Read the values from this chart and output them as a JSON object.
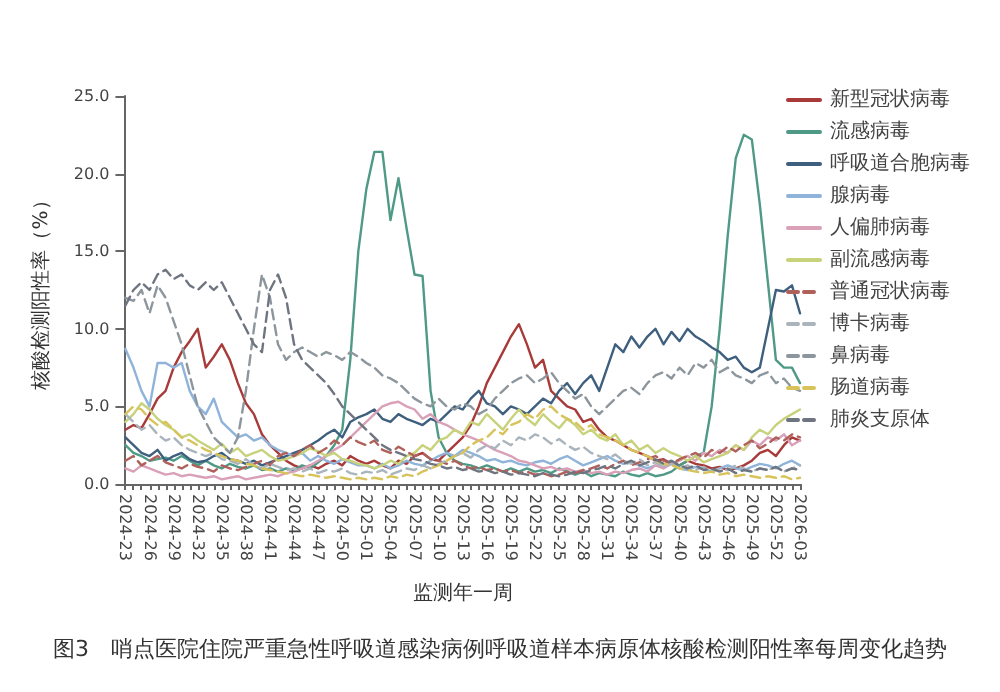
{
  "chart_data": {
    "type": "line",
    "xlabel": "监测年一周",
    "ylabel": "核酸检测阳性率（%）",
    "annotations": [
      "图3　哨点医院住院严重急性呼吸道感染病例呼吸道样本病原体核酸检测阳性率每周变化趋势"
    ],
    "categories": [
      "2024-23",
      null,
      null,
      "2024-26",
      null,
      null,
      "2024-29",
      null,
      null,
      "2024-32",
      null,
      null,
      "2024-35",
      null,
      null,
      "2024-38",
      null,
      null,
      "2024-41",
      null,
      null,
      "2024-44",
      null,
      null,
      "2024-47",
      null,
      null,
      "2024-50",
      null,
      null,
      "2025-01",
      null,
      null,
      "2025-04",
      null,
      null,
      "2025-07",
      null,
      null,
      "2025-10",
      null,
      null,
      "2025-13",
      null,
      null,
      "2025-16",
      null,
      null,
      "2025-19",
      null,
      null,
      "2025-22",
      null,
      null,
      "2025-25",
      null,
      null,
      "2025-28",
      null,
      null,
      "2025-31",
      null,
      null,
      "2025-34",
      null,
      null,
      "2025-37",
      null,
      null,
      "2025-40",
      null,
      null,
      "2025-43",
      null,
      null,
      "2025-46",
      null,
      null,
      "2025-49",
      null,
      null,
      "2025-52",
      null,
      null,
      "2026-03"
    ],
    "series": [
      {
        "name": "新型冠状病毒",
        "color": "#a83a3a",
        "line_style": "solid",
        "values": [
          3.5,
          3.8,
          3.6,
          4.5,
          5.5,
          6,
          7.5,
          8.5,
          9.2,
          10,
          7.5,
          8.2,
          9,
          8,
          6.5,
          5.2,
          4.5,
          3.2,
          2.5,
          2,
          1.5,
          1.2,
          1,
          1.2,
          1,
          1.3,
          1.5,
          1.2,
          1.8,
          1.5,
          1.3,
          1.5,
          1.2,
          1,
          1.5,
          1.3,
          1.8,
          2,
          1.6,
          1.5,
          2,
          2.5,
          3,
          3.8,
          5,
          6.5,
          7.5,
          8.5,
          9.5,
          10.3,
          9,
          7.5,
          8,
          6,
          5.5,
          5,
          4.8,
          4,
          4.2,
          3.5,
          3,
          2.8,
          2.5,
          2.2,
          2,
          1.8,
          1.5,
          1.6,
          1.3,
          1.2,
          1.5,
          1.3,
          1.2,
          1,
          1.1,
          0.9,
          1,
          1.2,
          1.5,
          2,
          2.2,
          1.8,
          2.5,
          3,
          2.8
        ]
      },
      {
        "name": "流感病毒",
        "color": "#4e9a86",
        "line_style": "solid",
        "values": [
          2.5,
          2,
          1.8,
          1.5,
          1.6,
          1.7,
          1.5,
          1.8,
          1.5,
          1.2,
          1.5,
          1.2,
          1,
          1.3,
          1.1,
          1,
          1.2,
          0.9,
          1,
          0.8,
          1,
          0.9,
          1.2,
          1,
          1.4,
          1.8,
          2.5,
          3.5,
          8,
          15,
          19,
          21.4,
          21.4,
          17,
          19.7,
          16.5,
          13.5,
          13.4,
          6,
          3,
          2,
          1.5,
          1.3,
          1.2,
          1,
          1.2,
          1,
          0.8,
          1,
          0.8,
          1,
          0.8,
          0.9,
          0.7,
          1,
          0.8,
          0.6,
          0.8,
          0.5,
          0.7,
          0.6,
          0.5,
          0.8,
          0.6,
          0.5,
          0.7,
          0.5,
          0.6,
          0.8,
          1.2,
          1.5,
          1.8,
          2,
          5,
          10,
          16,
          21,
          22.5,
          22.2,
          18,
          13,
          8,
          7.5,
          7.5,
          6.5
        ]
      },
      {
        "name": "呼吸道合胞病毒",
        "color": "#3f5f7f",
        "line_style": "solid",
        "values": [
          3,
          2.5,
          2,
          1.8,
          2.2,
          1.5,
          1.8,
          2,
          1.6,
          1.4,
          1.5,
          1.8,
          2,
          1.6,
          1.5,
          1.3,
          1.5,
          1.2,
          1.4,
          1.6,
          1.8,
          2,
          2.2,
          2.5,
          2.8,
          3.2,
          3.5,
          3,
          4,
          4.3,
          4.5,
          4.8,
          4.2,
          4,
          4.5,
          4.2,
          4,
          3.8,
          4.2,
          4,
          4.5,
          5,
          4.8,
          5.5,
          6,
          5.2,
          5,
          4.5,
          5,
          4.8,
          4.5,
          5,
          5.5,
          5.2,
          6,
          6.5,
          5.8,
          6.5,
          7,
          6,
          7.5,
          9,
          8.5,
          9.5,
          8.8,
          9.5,
          10,
          9,
          9.8,
          9.2,
          10,
          9.5,
          9.2,
          8.8,
          8.5,
          8,
          8.2,
          7.5,
          7.2,
          7.5,
          10,
          12.5,
          12.4,
          12.8,
          11
        ]
      },
      {
        "name": "腺病毒",
        "color": "#8fb3d9",
        "line_style": "solid",
        "values": [
          8.7,
          7.5,
          6,
          5,
          7.8,
          7.8,
          7.5,
          7.8,
          6,
          5,
          4.5,
          5.5,
          4,
          3.5,
          3,
          3.2,
          2.8,
          3,
          2.5,
          2.2,
          2,
          1.8,
          2,
          1.5,
          1.8,
          1.5,
          1.3,
          1.6,
          1.4,
          1.2,
          1.2,
          1,
          1.3,
          1,
          1.2,
          1.5,
          1.3,
          1.2,
          1.5,
          1.8,
          2,
          1.8,
          2.2,
          2,
          1.8,
          1.5,
          1.6,
          1.4,
          1.5,
          1.3,
          1.2,
          1.4,
          1.5,
          1.3,
          1.6,
          1.8,
          1.5,
          1.2,
          1.4,
          1.6,
          1.8,
          1.5,
          1.3,
          1.4,
          1.2,
          1,
          1.2,
          1.1,
          1.3,
          1,
          0.9,
          1.1,
          1,
          0.8,
          1,
          1.2,
          1,
          0.9,
          1.1,
          1.3,
          1.2,
          1,
          1.3,
          1.5,
          1.2
        ]
      },
      {
        "name": "人偏肺病毒",
        "color": "#d9a0b8",
        "line_style": "solid",
        "values": [
          1,
          0.8,
          1.2,
          1,
          0.8,
          0.6,
          0.7,
          0.5,
          0.6,
          0.5,
          0.4,
          0.5,
          0.3,
          0.4,
          0.5,
          0.3,
          0.4,
          0.5,
          0.6,
          0.5,
          0.7,
          0.8,
          1,
          1.2,
          1.5,
          1.8,
          2.2,
          2.5,
          3,
          3.5,
          4,
          4.5,
          5,
          5.2,
          5.3,
          5,
          4.8,
          4.2,
          4.5,
          4,
          3.8,
          3.5,
          3.2,
          3,
          2.8,
          2.5,
          2.2,
          2,
          1.8,
          1.5,
          1.4,
          1.2,
          1,
          1.1,
          0.9,
          1,
          0.8,
          0.9,
          0.7,
          0.8,
          0.6,
          0.8,
          0.7,
          0.9,
          1,
          0.8,
          1.2,
          1,
          1.3,
          1.5,
          1.8,
          1.5,
          2,
          1.8,
          2.2,
          2,
          2.5,
          2.2,
          2.8,
          2.5,
          3,
          2.8,
          3.2,
          2.5,
          2.8
        ]
      },
      {
        "name": "副流感病毒",
        "color": "#c8d27a",
        "line_style": "solid",
        "values": [
          4,
          4.5,
          5.2,
          4.8,
          4.2,
          3.8,
          3.5,
          3,
          3.2,
          2.8,
          2.5,
          2.2,
          2.6,
          2,
          2.3,
          1.8,
          2,
          2.2,
          1.8,
          1.5,
          1.6,
          1.8,
          2,
          2.3,
          2.1,
          1.8,
          2,
          1.6,
          1.5,
          1.3,
          1.2,
          1,
          1.2,
          1.5,
          1.3,
          1.8,
          2,
          2.5,
          2.2,
          2.8,
          3,
          3.5,
          3.2,
          4,
          3.8,
          4.5,
          4,
          3.5,
          4.2,
          4.8,
          4.2,
          3.8,
          4.5,
          4,
          3.6,
          4.2,
          3.8,
          3.2,
          3.5,
          3,
          2.8,
          3.2,
          2.5,
          2.8,
          2.2,
          2.5,
          2,
          2.3,
          2,
          1.8,
          1.5,
          1.8,
          1.4,
          1.6,
          1.8,
          2,
          2.5,
          2.2,
          3,
          3.5,
          3.2,
          3.8,
          4.2,
          4.5,
          4.8
        ]
      },
      {
        "name": "普通冠状病毒",
        "color": "#b0605a",
        "line_style": "dashed",
        "values": [
          1.5,
          1.8,
          1.2,
          1.5,
          1.8,
          1.4,
          1.2,
          1,
          1.3,
          1.1,
          1,
          0.8,
          1.2,
          1,
          0.9,
          1.1,
          1.3,
          1.5,
          1.2,
          1.8,
          2,
          1.8,
          2.2,
          2.5,
          2,
          2.3,
          2.8,
          2.5,
          3,
          2.7,
          2.5,
          2.8,
          2.2,
          2,
          2.4,
          2.1,
          1.8,
          2,
          1.6,
          1.5,
          1.3,
          1.5,
          1.2,
          1,
          1.1,
          0.9,
          1,
          0.8,
          0.9,
          0.7,
          0.8,
          0.6,
          0.7,
          0.5,
          0.6,
          0.8,
          0.7,
          0.9,
          1,
          1.2,
          1,
          1.3,
          1.5,
          1.2,
          1.4,
          1.6,
          1.8,
          1.5,
          1.3,
          1.6,
          1.8,
          2,
          1.7,
          2.2,
          2,
          2.4,
          2.1,
          2.5,
          2.8,
          2.3,
          2.6,
          3,
          2.8,
          3.2,
          3
        ]
      },
      {
        "name": "博卡病毒",
        "color": "#a9b4bc",
        "line_style": "dashed",
        "values": [
          4.5,
          4,
          3.5,
          3.8,
          3.2,
          2.8,
          3,
          2.5,
          2.2,
          2,
          1.8,
          2,
          1.6,
          1.5,
          1.3,
          1.6,
          1.2,
          1,
          1.3,
          1.1,
          0.9,
          1,
          0.8,
          1,
          0.7,
          0.9,
          0.8,
          1,
          0.7,
          0.6,
          0.8,
          0.7,
          0.9,
          0.6,
          0.8,
          1,
          0.9,
          1.2,
          1,
          1.3,
          1.5,
          1.8,
          2,
          1.7,
          2.2,
          2.5,
          2.3,
          2.8,
          2.5,
          3,
          2.8,
          3.2,
          3,
          2.6,
          2.9,
          2.5,
          2.2,
          2.4,
          2,
          1.8,
          1.6,
          1.9,
          1.5,
          1.3,
          1.6,
          1.2,
          1.4,
          1.1,
          1.3,
          1,
          1.2,
          0.9,
          1.1,
          0.8,
          1,
          0.9,
          1.2,
          1,
          0.8,
          1,
          0.9,
          1.1,
          0.8,
          1,
          1.2
        ]
      },
      {
        "name": "鼻病毒",
        "color": "#8c969c",
        "line_style": "dashed",
        "values": [
          12,
          11.8,
          12.5,
          11,
          12.8,
          12,
          10.5,
          9,
          7,
          5,
          4,
          3,
          2.5,
          2,
          3,
          6,
          10,
          13.5,
          12,
          9,
          8,
          8.5,
          8.8,
          8.5,
          8.2,
          8.5,
          8.3,
          8,
          8.5,
          8.2,
          7.8,
          7.5,
          7,
          6.8,
          6.5,
          6,
          5.5,
          5.2,
          5,
          5.5,
          5,
          4.8,
          5.2,
          5,
          4.5,
          4.8,
          5.5,
          6,
          6.5,
          6.8,
          7,
          6.5,
          6.8,
          7.2,
          6.5,
          6,
          5.5,
          5.8,
          5,
          4.5,
          5,
          5.5,
          6,
          6.2,
          5.8,
          6.5,
          7,
          7.2,
          6.8,
          7.5,
          7,
          7.8,
          7.5,
          8,
          7.2,
          7.5,
          7,
          6.8,
          6.5,
          7,
          7.2,
          6.5,
          6.8,
          6.2,
          6
        ]
      },
      {
        "name": "肠道病毒",
        "color": "#d8c35a",
        "line_style": "dashed",
        "values": [
          4.5,
          5,
          4.8,
          4.2,
          3.8,
          4,
          3.5,
          3,
          2.8,
          2.5,
          2.2,
          2,
          1.8,
          1.6,
          1.5,
          1.3,
          1.2,
          1,
          0.9,
          0.8,
          0.7,
          0.6,
          0.5,
          0.6,
          0.5,
          0.4,
          0.5,
          0.4,
          0.3,
          0.4,
          0.3,
          0.4,
          0.3,
          0.5,
          0.4,
          0.6,
          0.5,
          0.8,
          1,
          1.2,
          1.5,
          1.8,
          2,
          2.5,
          2.8,
          3,
          3.5,
          3.2,
          3.8,
          4,
          4.5,
          4.2,
          4.8,
          5,
          4.5,
          4.2,
          4,
          3.5,
          3.8,
          3.2,
          3,
          2.8,
          2.5,
          2.2,
          2,
          1.8,
          1.5,
          1.3,
          1.2,
          1,
          0.9,
          0.8,
          0.7,
          0.8,
          0.6,
          0.7,
          0.5,
          0.6,
          0.5,
          0.4,
          0.5,
          0.4,
          0.5,
          0.3,
          0.4
        ]
      },
      {
        "name": "肺炎支原体",
        "color": "#6e7480",
        "line_style": "dashed",
        "values": [
          11.5,
          12.5,
          13,
          12.5,
          13.5,
          13.8,
          13.2,
          13.5,
          12.8,
          12.5,
          13,
          12.5,
          13,
          12,
          11,
          10,
          9,
          8.5,
          12.5,
          13.5,
          12,
          9,
          8,
          7.5,
          7,
          6.5,
          5.8,
          5,
          4.5,
          4,
          3.5,
          3,
          2.5,
          2.2,
          2,
          1.8,
          1.6,
          1.5,
          1.3,
          1.2,
          1,
          1.1,
          0.9,
          1,
          0.8,
          0.9,
          0.7,
          0.8,
          0.6,
          0.7,
          0.6,
          0.5,
          0.7,
          0.6,
          0.5,
          0.6,
          0.8,
          0.7,
          0.9,
          1,
          1.2,
          1,
          1.3,
          1.5,
          1.2,
          1.4,
          1.6,
          1.3,
          1.5,
          1.2,
          1,
          1.2,
          0.9,
          1,
          0.8,
          1,
          0.7,
          0.9,
          0.8,
          1,
          0.9,
          1.1,
          0.8,
          1,
          0.9
        ]
      }
    ],
    "ylim": [
      0,
      25
    ],
    "yticks": [
      {
        "value": 0,
        "label": "0.0"
      },
      {
        "value": 5,
        "label": "5.0"
      },
      {
        "value": 10,
        "label": "10.0"
      },
      {
        "value": 15,
        "label": "15.0"
      },
      {
        "value": 20,
        "label": "20.0"
      },
      {
        "value": 25,
        "label": "25.0"
      }
    ],
    "legend": "right",
    "marker": "none"
  }
}
